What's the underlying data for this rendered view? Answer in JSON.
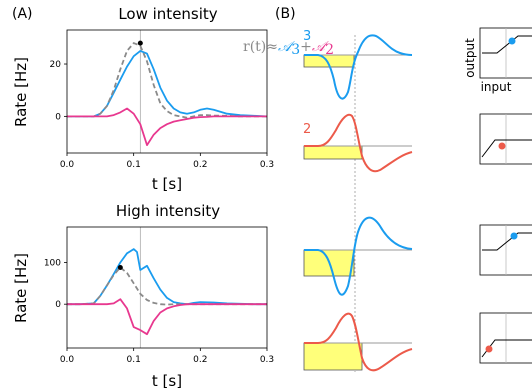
{
  "colors": {
    "population3": "#1a9cef",
    "population2": "#ec5a4a",
    "sum_curve": "#e8388f",
    "dashed": "#8a8a8a",
    "stim_fill": "#ffff7a"
  },
  "panel_a_label": "(A)",
  "panel_b_label": "(B)",
  "annotation": {
    "lhs": "r(t)≈",
    "term1": "𝒜",
    "sub1": "3",
    "plus": "+",
    "term2": "𝒜",
    "sub2": "2"
  },
  "diagram": {
    "rows": [
      {
        "row_label": "3",
        "color": "#1a9cef",
        "io_axis_y": "output",
        "io_axis_x": "input"
      },
      {
        "row_label": "2",
        "color": "#ec5a4a"
      },
      {
        "row_label": "",
        "color": "#1a9cef"
      },
      {
        "row_label": "",
        "color": "#ec5a4a"
      }
    ]
  },
  "chart_data": [
    {
      "type": "line",
      "title": "Low intensity",
      "xlabel": "t [s]",
      "ylabel": "Rate [Hz]",
      "xlim": [
        0.0,
        0.3
      ],
      "ylim": [
        -14,
        33
      ],
      "xticks": [
        "0.0",
        "0.1",
        "0.2",
        "0.3"
      ],
      "yticks": [
        "0",
        "20"
      ],
      "vline_x": 0.11,
      "peak_marker": {
        "x": 0.11,
        "y": 28
      },
      "series": [
        {
          "color": "#1a9cef",
          "style": "solid",
          "x": [
            0.0,
            0.02,
            0.04,
            0.05,
            0.06,
            0.07,
            0.08,
            0.09,
            0.1,
            0.11,
            0.12,
            0.13,
            0.14,
            0.15,
            0.16,
            0.17,
            0.18,
            0.19,
            0.2,
            0.21,
            0.22,
            0.24,
            0.26,
            0.28,
            0.3
          ],
          "y": [
            0,
            0,
            0,
            1,
            4,
            9,
            14,
            19,
            23,
            25,
            24,
            18,
            11,
            6,
            3,
            1.5,
            1,
            1.5,
            2.5,
            3,
            2.5,
            1,
            0.5,
            0.2,
            0
          ]
        },
        {
          "color": "#8a8a8a",
          "style": "dashed",
          "x": [
            0.0,
            0.02,
            0.04,
            0.05,
            0.06,
            0.07,
            0.08,
            0.09,
            0.1,
            0.11,
            0.12,
            0.13,
            0.14,
            0.15,
            0.16,
            0.17,
            0.18,
            0.19,
            0.2,
            0.21,
            0.22,
            0.24,
            0.26,
            0.28,
            0.3
          ],
          "y": [
            0,
            0,
            0,
            1,
            4,
            10,
            18,
            25,
            28,
            27,
            21,
            12,
            5,
            2,
            0.5,
            0,
            -0.5,
            0,
            0.5,
            0.5,
            0.3,
            0.2,
            0,
            0,
            0
          ]
        },
        {
          "color": "#e8388f",
          "style": "solid",
          "x": [
            0.0,
            0.04,
            0.05,
            0.06,
            0.07,
            0.08,
            0.09,
            0.1,
            0.11,
            0.12,
            0.13,
            0.14,
            0.15,
            0.16,
            0.17,
            0.18,
            0.19,
            0.2,
            0.21,
            0.22,
            0.24,
            0.26,
            0.28,
            0.3
          ],
          "y": [
            0,
            0,
            0,
            0,
            0.5,
            1.5,
            3,
            1,
            -3,
            -11,
            -7,
            -4.5,
            -3,
            -2,
            -1.5,
            -1,
            -0.5,
            -0.3,
            -0.2,
            0,
            0,
            0,
            0,
            0
          ]
        }
      ]
    },
    {
      "type": "line",
      "title": "High intensity",
      "xlabel": "t [s]",
      "ylabel": "Rate [Hz]",
      "xlim": [
        0.0,
        0.3
      ],
      "ylim": [
        -105,
        185
      ],
      "xticks": [
        "0.0",
        "0.1",
        "0.2",
        "0.3"
      ],
      "yticks": [
        "0",
        "100"
      ],
      "vline_x": 0.11,
      "peak_marker": {
        "x": 0.08,
        "y": 88
      },
      "series": [
        {
          "color": "#1a9cef",
          "style": "solid",
          "x": [
            0.0,
            0.02,
            0.04,
            0.05,
            0.06,
            0.07,
            0.08,
            0.09,
            0.1,
            0.105,
            0.11,
            0.12,
            0.13,
            0.14,
            0.15,
            0.16,
            0.17,
            0.18,
            0.19,
            0.2,
            0.22,
            0.24,
            0.26,
            0.28,
            0.3
          ],
          "y": [
            0,
            0,
            2,
            20,
            45,
            72,
            100,
            122,
            132,
            125,
            82,
            92,
            62,
            35,
            15,
            5,
            2,
            0,
            3,
            5,
            4,
            2,
            1,
            0,
            0
          ]
        },
        {
          "color": "#8a8a8a",
          "style": "dashed",
          "x": [
            0.0,
            0.02,
            0.04,
            0.05,
            0.06,
            0.07,
            0.08,
            0.09,
            0.1,
            0.11,
            0.12,
            0.13,
            0.14,
            0.15,
            0.16,
            0.18,
            0.2,
            0.22,
            0.24,
            0.26,
            0.28,
            0.3
          ],
          "y": [
            0,
            0,
            2,
            20,
            45,
            70,
            88,
            75,
            50,
            25,
            10,
            3,
            0,
            -1,
            0,
            0,
            0,
            0,
            0,
            0,
            0,
            0
          ]
        },
        {
          "color": "#e8388f",
          "style": "solid",
          "x": [
            0.0,
            0.04,
            0.05,
            0.06,
            0.07,
            0.08,
            0.09,
            0.1,
            0.11,
            0.12,
            0.13,
            0.14,
            0.15,
            0.16,
            0.17,
            0.18,
            0.2,
            0.22,
            0.24,
            0.26,
            0.28,
            0.3
          ],
          "y": [
            0,
            0,
            0,
            0,
            2,
            12,
            -10,
            -55,
            -62,
            -72,
            -40,
            -20,
            -10,
            -5,
            -2,
            0,
            0,
            0,
            0,
            0,
            0,
            0
          ]
        }
      ]
    }
  ]
}
